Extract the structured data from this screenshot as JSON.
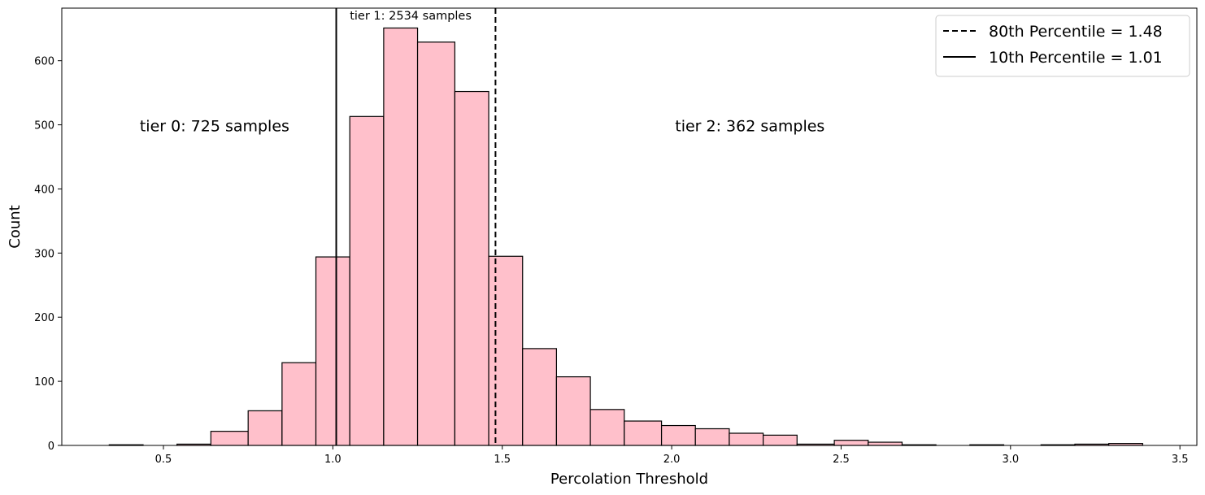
{
  "chart_data": {
    "type": "bar",
    "title": "",
    "xlabel": "Percolation Threshold",
    "ylabel": "Count",
    "xlim": [
      0.2,
      3.55
    ],
    "ylim": [
      0,
      682
    ],
    "xticks": [
      0.5,
      1.0,
      1.5,
      2.0,
      2.5,
      3.0,
      3.5
    ],
    "xtick_labels": [
      "0.5",
      "1.0",
      "1.5",
      "2.0",
      "2.5",
      "3.0",
      "3.5"
    ],
    "yticks": [
      0,
      100,
      200,
      300,
      400,
      500,
      600
    ],
    "ytick_labels": [
      "0",
      "100",
      "200",
      "300",
      "400",
      "500",
      "600"
    ],
    "bar_color": "#ffc0cb",
    "edge_color": "#000000",
    "bins": [
      {
        "x0": 0.34,
        "x1": 0.44,
        "count": 1
      },
      {
        "x0": 0.44,
        "x1": 0.54,
        "count": 0
      },
      {
        "x0": 0.54,
        "x1": 0.64,
        "count": 2
      },
      {
        "x0": 0.64,
        "x1": 0.75,
        "count": 22
      },
      {
        "x0": 0.75,
        "x1": 0.85,
        "count": 54
      },
      {
        "x0": 0.85,
        "x1": 0.95,
        "count": 129
      },
      {
        "x0": 0.95,
        "x1": 1.05,
        "count": 294
      },
      {
        "x0": 1.05,
        "x1": 1.15,
        "count": 513
      },
      {
        "x0": 1.15,
        "x1": 1.25,
        "count": 651
      },
      {
        "x0": 1.25,
        "x1": 1.36,
        "count": 629
      },
      {
        "x0": 1.36,
        "x1": 1.46,
        "count": 552
      },
      {
        "x0": 1.46,
        "x1": 1.56,
        "count": 295
      },
      {
        "x0": 1.56,
        "x1": 1.66,
        "count": 151
      },
      {
        "x0": 1.66,
        "x1": 1.76,
        "count": 107
      },
      {
        "x0": 1.76,
        "x1": 1.86,
        "count": 56
      },
      {
        "x0": 1.86,
        "x1": 1.97,
        "count": 38
      },
      {
        "x0": 1.97,
        "x1": 2.07,
        "count": 31
      },
      {
        "x0": 2.07,
        "x1": 2.17,
        "count": 26
      },
      {
        "x0": 2.17,
        "x1": 2.27,
        "count": 19
      },
      {
        "x0": 2.27,
        "x1": 2.37,
        "count": 16
      },
      {
        "x0": 2.37,
        "x1": 2.48,
        "count": 2
      },
      {
        "x0": 2.48,
        "x1": 2.58,
        "count": 8
      },
      {
        "x0": 2.58,
        "x1": 2.68,
        "count": 5
      },
      {
        "x0": 2.68,
        "x1": 2.78,
        "count": 1
      },
      {
        "x0": 2.78,
        "x1": 2.88,
        "count": 0
      },
      {
        "x0": 2.88,
        "x1": 2.98,
        "count": 1
      },
      {
        "x0": 2.98,
        "x1": 3.09,
        "count": 0
      },
      {
        "x0": 3.09,
        "x1": 3.19,
        "count": 1
      },
      {
        "x0": 3.19,
        "x1": 3.29,
        "count": 2
      },
      {
        "x0": 3.29,
        "x1": 3.39,
        "count": 3
      }
    ],
    "vlines": [
      {
        "x": 1.48,
        "style": "dashed",
        "label": "80th Percentile = 1.48"
      },
      {
        "x": 1.01,
        "style": "solid",
        "label": "10th Percentile = 1.01"
      }
    ],
    "legend_placement": "top-right",
    "annotations": [
      {
        "text": "tier 0: 725 samples",
        "x": 0.43,
        "y": 490,
        "size": "large"
      },
      {
        "text": "tier 1: 2534 samples",
        "x": 1.05,
        "y": 664,
        "size": "small"
      },
      {
        "text": "tier 2: 362 samples",
        "x": 2.01,
        "y": 490,
        "size": "large"
      }
    ]
  }
}
